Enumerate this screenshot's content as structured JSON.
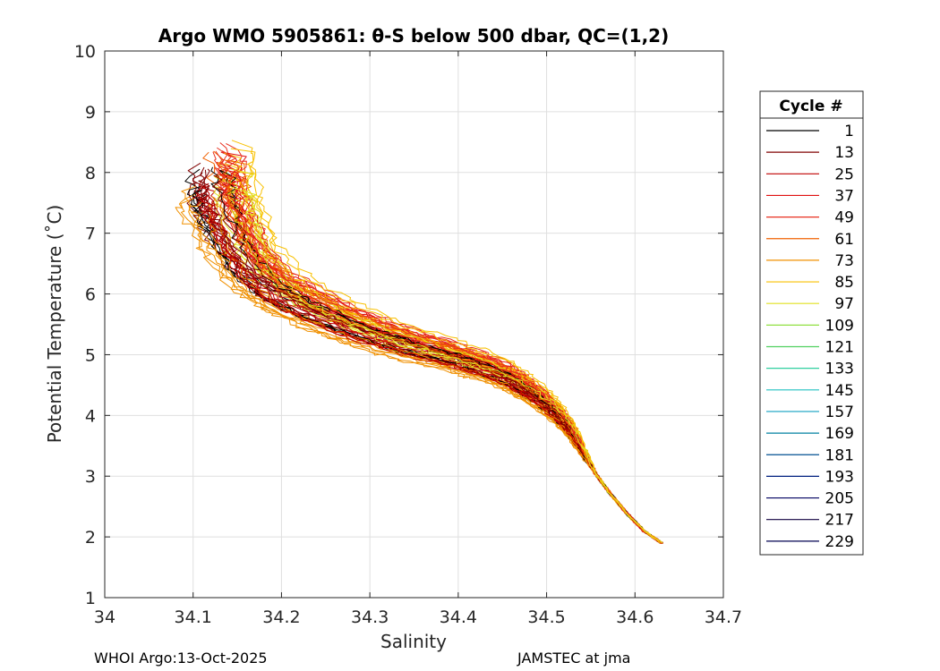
{
  "chart_data": {
    "type": "line",
    "title": "Argo WMO 5905861: θ-S below 500 dbar,  QC=(1,2)",
    "xlabel": "Salinity",
    "ylabel": "Potential Temperature (˚C)",
    "xlim": [
      34.0,
      34.7
    ],
    "ylim": [
      1,
      10
    ],
    "xticks": [
      "34",
      "34.1",
      "34.2",
      "34.3",
      "34.4",
      "34.5",
      "34.6",
      "34.7"
    ],
    "yticks": [
      "1",
      "2",
      "3",
      "4",
      "5",
      "6",
      "7",
      "8",
      "9",
      "10"
    ],
    "grid": true,
    "legend": {
      "title": "Cycle #",
      "placement": "right-outside",
      "entries": [
        {
          "label": "1",
          "color": "#000000"
        },
        {
          "label": "13",
          "color": "#800000"
        },
        {
          "label": "25",
          "color": "#c00000"
        },
        {
          "label": "37",
          "color": "#e01010"
        },
        {
          "label": "49",
          "color": "#e83020"
        },
        {
          "label": "61",
          "color": "#f06000"
        },
        {
          "label": "73",
          "color": "#f09000"
        },
        {
          "label": "85",
          "color": "#f8c000"
        },
        {
          "label": "97",
          "color": "#e0e020"
        },
        {
          "label": "109",
          "color": "#90e040"
        },
        {
          "label": "121",
          "color": "#50d060"
        },
        {
          "label": "133",
          "color": "#30d0a0"
        },
        {
          "label": "145",
          "color": "#20c0c0"
        },
        {
          "label": "157",
          "color": "#10a0c0"
        },
        {
          "label": "169",
          "color": "#0080a0"
        },
        {
          "label": "181",
          "color": "#005090"
        },
        {
          "label": "193",
          "color": "#002080"
        },
        {
          "label": "205",
          "color": "#000060"
        },
        {
          "label": "217",
          "color": "#100040"
        },
        {
          "label": "229",
          "color": "#000050"
        }
      ]
    },
    "profile_shape": {
      "salinity": [
        34.63,
        34.61,
        34.59,
        34.57,
        34.555,
        34.54,
        34.525,
        34.51,
        34.49,
        34.47,
        34.45,
        34.42,
        34.39,
        34.35,
        34.31,
        34.27,
        34.23,
        34.19,
        34.16,
        34.14,
        34.125,
        34.12
      ],
      "theta": [
        1.9,
        2.1,
        2.4,
        2.75,
        3.05,
        3.4,
        3.75,
        4.0,
        4.25,
        4.45,
        4.62,
        4.78,
        4.92,
        5.08,
        5.25,
        5.45,
        5.7,
        6.0,
        6.4,
        6.9,
        7.4,
        7.8
      ]
    },
    "highlighted_cycles": [
      {
        "cycle": 1,
        "color": "#000000",
        "s_offset": 0.0,
        "t_offset": 0.0
      },
      {
        "cycle": 13,
        "color": "#800000",
        "s_offset": -0.01,
        "t_offset": 0.1
      },
      {
        "cycle": 25,
        "color": "#c00000",
        "s_offset": 0.005,
        "t_offset": -0.1
      },
      {
        "cycle": 37,
        "color": "#e01010",
        "s_offset": 0.02,
        "t_offset": 0.25
      },
      {
        "cycle": 49,
        "color": "#e83020",
        "s_offset": 0.03,
        "t_offset": 0.4
      },
      {
        "cycle": 61,
        "color": "#f06000",
        "s_offset": 0.015,
        "t_offset": 0.3
      },
      {
        "cycle": 73,
        "color": "#f09000",
        "s_offset": -0.015,
        "t_offset": -0.25
      },
      {
        "cycle": 85,
        "color": "#f8c000",
        "s_offset": 0.035,
        "t_offset": 0.5
      },
      {
        "cycle": 97,
        "color": "#e0e020",
        "s_offset": 0.025,
        "t_offset": 0.1
      }
    ]
  },
  "footer": {
    "left": "WHOI Argo:13-Oct-2025",
    "right": "JAMSTEC at jma"
  }
}
